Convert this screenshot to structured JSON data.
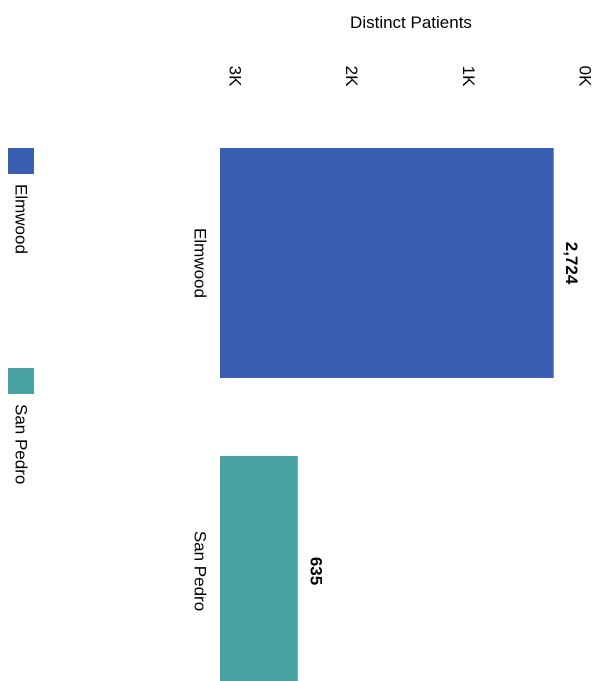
{
  "chart_data": {
    "type": "bar",
    "orientation": "horizontal",
    "xlabel": "Distinct Patients",
    "categories": [
      "Elmwood",
      "San Pedro"
    ],
    "values": [
      2724,
      635
    ],
    "data_labels": [
      "2,724",
      "635"
    ],
    "xlim": [
      0,
      3000
    ],
    "ticks": [
      0,
      1000,
      2000,
      3000
    ],
    "tick_labels": [
      "0K",
      "1K",
      "2K",
      "3K"
    ],
    "colors": [
      "#3a5fb0",
      "#4aa3a3"
    ],
    "legend": {
      "placement": "left",
      "items": [
        {
          "label": "Elmwood",
          "color": "#3a5fb0"
        },
        {
          "label": "San Pedro",
          "color": "#4aa3a3"
        }
      ]
    },
    "grid": false,
    "rotation": "90deg clockwise"
  }
}
